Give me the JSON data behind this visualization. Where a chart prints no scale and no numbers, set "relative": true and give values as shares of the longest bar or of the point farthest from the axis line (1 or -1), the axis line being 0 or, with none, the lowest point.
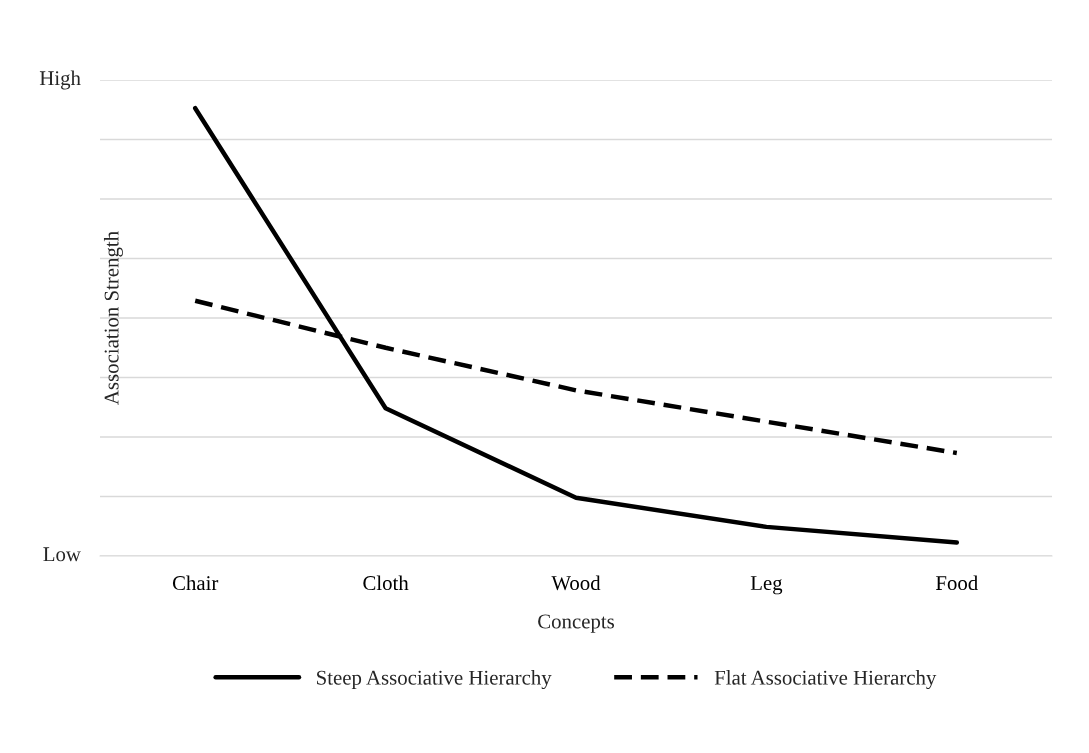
{
  "chart_data": {
    "type": "line",
    "relative": true,
    "xlabel": "Concepts",
    "ylabel": "Association Strength",
    "categories": [
      "Chair",
      "Cloth",
      "Wood",
      "Leg",
      "Food"
    ],
    "series": [
      {
        "name": "Steep Associative Hierarchy",
        "color": "#000000",
        "line_style": "solid",
        "values": [
          1,
          0.33,
          0.13,
          0.065,
          0.03
        ]
      },
      {
        "name": "Flat Associative Hierarchy",
        "color": "#000000",
        "line_style": "dashed",
        "values": [
          0.57,
          0.465,
          0.37,
          0.3,
          0.23
        ]
      }
    ],
    "annotations": [
      "High",
      "Low"
    ],
    "grid": "y",
    "legend": "bottom",
    "marker": "none"
  }
}
